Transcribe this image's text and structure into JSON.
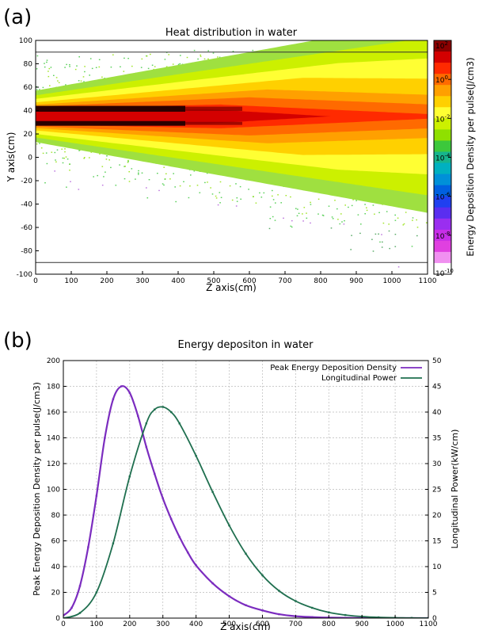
{
  "panels": {
    "a": {
      "letter": "(a)"
    },
    "b": {
      "letter": "(b)"
    }
  },
  "chart_data": [
    {
      "type": "heatmap",
      "title": "Heat distribution in water",
      "xlabel": "Z axis(cm)",
      "ylabel": "Y axis(cm)",
      "xlim": [
        0,
        1100
      ],
      "ylim": [
        -100,
        100
      ],
      "x_ticks": [
        0,
        100,
        200,
        300,
        400,
        500,
        600,
        700,
        800,
        900,
        1000,
        1100
      ],
      "y_ticks": [
        -100,
        -80,
        -60,
        -40,
        -20,
        0,
        20,
        40,
        60,
        80,
        100
      ],
      "reference_lines_y": [
        90,
        -90
      ],
      "colorbar": {
        "label": "Energy Deposition Density per pulse(J/cm3)",
        "scale": "log",
        "range": [
          1e-10,
          100
        ],
        "tick_labels": [
          "10^2",
          "10^0",
          "10^-2",
          "10^-4",
          "10^-6",
          "10^-8",
          "10^-10"
        ],
        "colors": [
          "#8b0000",
          "#d40000",
          "#ff2a00",
          "#ff6a00",
          "#ffa000",
          "#ffd000",
          "#ffff33",
          "#ccf000",
          "#8fe000",
          "#3cc83c",
          "#16b48c",
          "#00b0c0",
          "#0090d8",
          "#0060e0",
          "#2040f0",
          "#5a2ef0",
          "#9a2ef0",
          "#c82ee8",
          "#e040e0",
          "#f090f0",
          "#ffffff"
        ]
      },
      "bands": [
        {
          "name": "core",
          "level": "black",
          "y": [
            39,
            44
          ],
          "z": [
            0,
            420
          ]
        },
        {
          "name": "core",
          "level": "black",
          "y": [
            27,
            31
          ],
          "z": [
            0,
            420
          ]
        }
      ]
    },
    {
      "type": "line",
      "title": "Energy depositon in water",
      "xlabel": "Z axis(cm)",
      "ylabel": "Peak Energy Deposition Density per pulse(J/cm3)",
      "y2label": "Longitudinal Power(kW/cm)",
      "xlim": [
        0,
        1100
      ],
      "ylim": [
        0,
        200
      ],
      "y2lim": [
        0,
        50
      ],
      "x_ticks": [
        0,
        100,
        200,
        300,
        400,
        500,
        600,
        700,
        800,
        900,
        1000,
        1100
      ],
      "y_ticks": [
        0,
        20,
        40,
        60,
        80,
        100,
        120,
        140,
        160,
        180,
        200
      ],
      "y2_ticks": [
        0,
        5,
        10,
        15,
        20,
        25,
        30,
        35,
        40,
        45,
        50
      ],
      "grid": true,
      "legend_position": "top-right",
      "series": [
        {
          "name": "Peak Energy Deposition Density",
          "axis": "left",
          "color": "#7b2cbf",
          "x": [
            0,
            25,
            50,
            75,
            100,
            125,
            150,
            175,
            200,
            225,
            250,
            275,
            300,
            325,
            350,
            375,
            400,
            450,
            500,
            550,
            600,
            650,
            700,
            750,
            800,
            900,
            1000,
            1100
          ],
          "y": [
            2,
            8,
            25,
            55,
            95,
            140,
            170,
            180,
            175,
            157,
            133,
            112,
            93,
            77,
            63,
            51,
            41,
            27,
            17,
            10,
            6,
            3,
            1.5,
            0.8,
            0.4,
            0.1,
            0,
            0
          ]
        },
        {
          "name": "Longitudinal Power",
          "axis": "right",
          "color": "#1f6f4f",
          "x": [
            0,
            50,
            100,
            150,
            200,
            250,
            275,
            300,
            325,
            350,
            400,
            450,
            500,
            550,
            600,
            650,
            700,
            750,
            800,
            850,
            900,
            950,
            1000,
            1050,
            1100
          ],
          "y": [
            0,
            1,
            5,
            14.5,
            27.5,
            37.8,
            40.5,
            41,
            40,
            37.8,
            31.5,
            24.5,
            18,
            12.5,
            8.3,
            5.3,
            3.3,
            2.0,
            1.1,
            0.6,
            0.3,
            0.15,
            0.07,
            0.03,
            0
          ]
        }
      ]
    }
  ]
}
